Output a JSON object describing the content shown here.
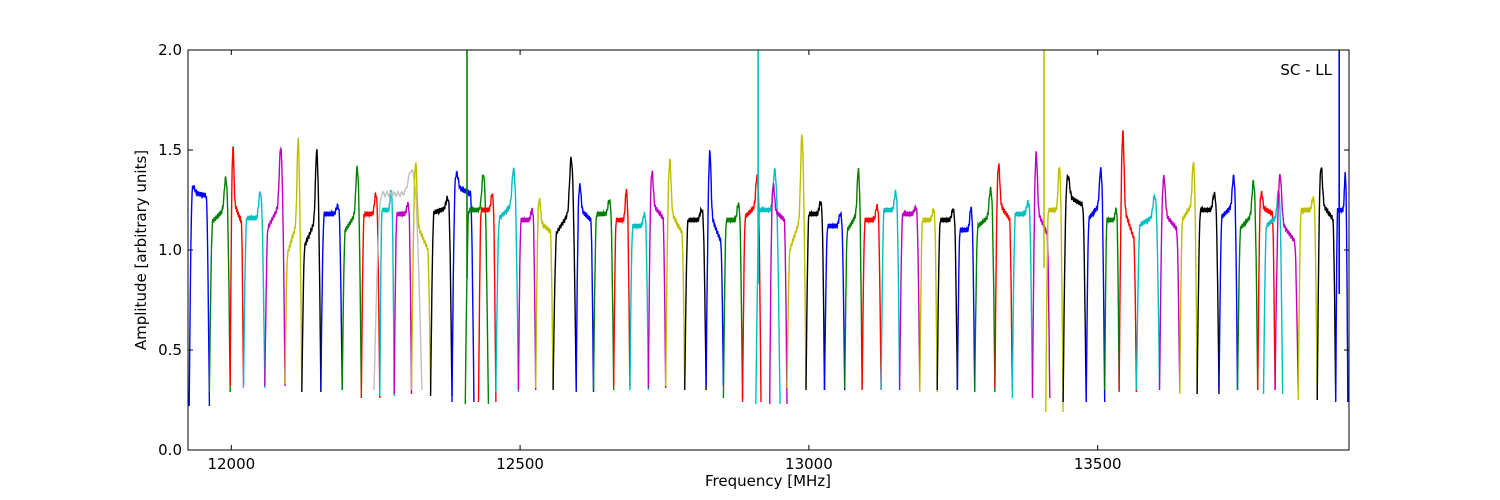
{
  "chart_data": {
    "type": "line",
    "title": "",
    "annotation": "SC - LL",
    "xlabel": "Frequency [MHz]",
    "ylabel": "Amplitude [arbitrary units]",
    "xlim": [
      11925,
      13935
    ],
    "ylim": [
      0.0,
      2.0
    ],
    "xticks": [
      12000,
      12500,
      13000,
      13500
    ],
    "xtick_labels": [
      "12000",
      "12500",
      "13000",
      "13500"
    ],
    "yticks": [
      0.0,
      0.5,
      1.0,
      1.5,
      2.0
    ],
    "ytick_labels": [
      "0.0",
      "0.5",
      "1.0",
      "1.5",
      "2.0"
    ],
    "grid": false,
    "colors": [
      "#0000ff",
      "#008000",
      "#ff0000",
      "#00bfbf",
      "#bf00bf",
      "#bfbf00",
      "#000000",
      "#c0c0c0"
    ],
    "passband": {
      "units": "MHz",
      "series": [
        {
          "color": "#0000ff",
          "start": 11927,
          "end": 11962,
          "low": 0.22,
          "level": 1.28,
          "peak": 1.31,
          "slope": -1
        },
        {
          "color": "#008000",
          "start": 11962,
          "end": 11998,
          "low": 0.29,
          "level": 1.18,
          "peak": 1.33,
          "slope": 1
        },
        {
          "color": "#ff0000",
          "start": 11998,
          "end": 12021,
          "low": 0.32,
          "level": 1.2,
          "peak": 1.46,
          "slope": -1
        },
        {
          "color": "#00bfbf",
          "start": 12021,
          "end": 12058,
          "low": 0.31,
          "level": 1.16,
          "peak": 1.29,
          "slope": 0
        },
        {
          "color": "#bf00bf",
          "start": 12058,
          "end": 12093,
          "low": 0.32,
          "level": 1.18,
          "peak": 1.46,
          "slope": 1
        },
        {
          "color": "#bfbf00",
          "start": 12093,
          "end": 12122,
          "low": 0.33,
          "level": 1.08,
          "peak": 1.48,
          "slope": 1
        },
        {
          "color": "#000000",
          "start": 12122,
          "end": 12155,
          "low": 0.29,
          "level": 1.1,
          "peak": 1.43,
          "slope": 1
        },
        {
          "color": "#0000ff",
          "start": 12155,
          "end": 12192,
          "low": 0.3,
          "level": 1.18,
          "peak": 1.22,
          "slope": 0
        },
        {
          "color": "#008000",
          "start": 12192,
          "end": 12225,
          "low": 0.3,
          "level": 1.15,
          "peak": 1.37,
          "slope": 1
        },
        {
          "color": "#ff0000",
          "start": 12225,
          "end": 12257,
          "low": 0.26,
          "level": 1.18,
          "peak": 1.28,
          "slope": 0
        },
        {
          "color": "#00bfbf",
          "start": 12257,
          "end": 12282,
          "low": 0.27,
          "level": 1.2,
          "peak": 1.3,
          "slope": 0
        },
        {
          "color": "#c0c0c0",
          "start": 12247,
          "end": 12330,
          "low": 0.3,
          "level": 1.28,
          "peak": 1.4,
          "slope": 0
        },
        {
          "color": "#bf00bf",
          "start": 12282,
          "end": 12312,
          "low": 0.28,
          "level": 1.18,
          "peak": 1.23,
          "slope": 0
        },
        {
          "color": "#bfbf00",
          "start": 12312,
          "end": 12345,
          "low": 0.3,
          "level": 1.08,
          "peak": 1.38,
          "slope": -1
        },
        {
          "color": "#000000",
          "start": 12345,
          "end": 12382,
          "low": 0.27,
          "level": 1.2,
          "peak": 1.25,
          "slope": 1
        },
        {
          "color": "#0000ff",
          "start": 12382,
          "end": 12420,
          "low": 0.24,
          "level": 1.3,
          "peak": 1.37,
          "slope": -1
        },
        {
          "color": "#008000",
          "start": 12405,
          "end": 12445,
          "low": 0.23,
          "level": 1.2,
          "peak": 1.38,
          "slope": 0
        },
        {
          "color": "#ff0000",
          "start": 12428,
          "end": 12458,
          "low": 0.24,
          "level": 1.2,
          "peak": 1.28,
          "slope": 0
        },
        {
          "color": "#00bfbf",
          "start": 12458,
          "end": 12497,
          "low": 0.29,
          "level": 1.2,
          "peak": 1.37,
          "slope": 1
        },
        {
          "color": "#bf00bf",
          "start": 12497,
          "end": 12527,
          "low": 0.3,
          "level": 1.15,
          "peak": 1.2,
          "slope": 0
        },
        {
          "color": "#bfbf00",
          "start": 12527,
          "end": 12557,
          "low": 0.31,
          "level": 1.12,
          "peak": 1.23,
          "slope": -1
        },
        {
          "color": "#000000",
          "start": 12557,
          "end": 12597,
          "low": 0.3,
          "level": 1.15,
          "peak": 1.41,
          "slope": 1
        },
        {
          "color": "#0000ff",
          "start": 12597,
          "end": 12627,
          "low": 0.29,
          "level": 1.18,
          "peak": 1.3,
          "slope": -1
        },
        {
          "color": "#008000",
          "start": 12627,
          "end": 12662,
          "low": 0.3,
          "level": 1.18,
          "peak": 1.25,
          "slope": 0
        },
        {
          "color": "#ff0000",
          "start": 12662,
          "end": 12690,
          "low": 0.32,
          "level": 1.15,
          "peak": 1.3,
          "slope": 0
        },
        {
          "color": "#00bfbf",
          "start": 12690,
          "end": 12722,
          "low": 0.3,
          "level": 1.12,
          "peak": 1.18,
          "slope": 0
        },
        {
          "color": "#bf00bf",
          "start": 12722,
          "end": 12752,
          "low": 0.31,
          "level": 1.2,
          "peak": 1.36,
          "slope": -1
        },
        {
          "color": "#bfbf00",
          "start": 12752,
          "end": 12785,
          "low": 0.32,
          "level": 1.15,
          "peak": 1.4,
          "slope": -1
        },
        {
          "color": "#000000",
          "start": 12785,
          "end": 12822,
          "low": 0.3,
          "level": 1.15,
          "peak": 1.2,
          "slope": 0
        },
        {
          "color": "#0000ff",
          "start": 12822,
          "end": 12852,
          "low": 0.32,
          "level": 1.12,
          "peak": 1.43,
          "slope": -1
        },
        {
          "color": "#008000",
          "start": 12852,
          "end": 12885,
          "low": 0.26,
          "level": 1.15,
          "peak": 1.23,
          "slope": 0
        },
        {
          "color": "#ff0000",
          "start": 12885,
          "end": 12917,
          "low": 0.24,
          "level": 1.2,
          "peak": 1.34,
          "slope": 1
        },
        {
          "color": "#00bfbf",
          "start": 12908,
          "end": 12950,
          "low": 0.23,
          "level": 1.2,
          "peak": 1.4,
          "slope": 0
        },
        {
          "color": "#bf00bf",
          "start": 12932,
          "end": 12962,
          "low": 0.23,
          "level": 1.18,
          "peak": 1.3,
          "slope": -1
        },
        {
          "color": "#bfbf00",
          "start": 12962,
          "end": 12995,
          "low": 0.31,
          "level": 1.1,
          "peak": 1.5,
          "slope": 1
        },
        {
          "color": "#000000",
          "start": 12995,
          "end": 13027,
          "low": 0.3,
          "level": 1.18,
          "peak": 1.24,
          "slope": 0
        },
        {
          "color": "#0000ff",
          "start": 13027,
          "end": 13062,
          "low": 0.3,
          "level": 1.12,
          "peak": 1.18,
          "slope": 0
        },
        {
          "color": "#008000",
          "start": 13062,
          "end": 13092,
          "low": 0.31,
          "level": 1.15,
          "peak": 1.36,
          "slope": 1
        },
        {
          "color": "#ff0000",
          "start": 13092,
          "end": 13125,
          "low": 0.3,
          "level": 1.15,
          "peak": 1.22,
          "slope": 0
        },
        {
          "color": "#00bfbf",
          "start": 13125,
          "end": 13157,
          "low": 0.3,
          "level": 1.2,
          "peak": 1.29,
          "slope": 0
        },
        {
          "color": "#bf00bf",
          "start": 13157,
          "end": 13192,
          "low": 0.3,
          "level": 1.18,
          "peak": 1.21,
          "slope": 0
        },
        {
          "color": "#bfbf00",
          "start": 13192,
          "end": 13222,
          "low": 0.29,
          "level": 1.15,
          "peak": 1.2,
          "slope": 0
        },
        {
          "color": "#000000",
          "start": 13222,
          "end": 13257,
          "low": 0.3,
          "level": 1.15,
          "peak": 1.2,
          "slope": 0
        },
        {
          "color": "#0000ff",
          "start": 13257,
          "end": 13287,
          "low": 0.3,
          "level": 1.1,
          "peak": 1.21,
          "slope": 0
        },
        {
          "color": "#008000",
          "start": 13287,
          "end": 13322,
          "low": 0.29,
          "level": 1.15,
          "peak": 1.28,
          "slope": 1
        },
        {
          "color": "#ff0000",
          "start": 13322,
          "end": 13352,
          "low": 0.31,
          "level": 1.2,
          "peak": 1.39,
          "slope": -1
        },
        {
          "color": "#00bfbf",
          "start": 13352,
          "end": 13387,
          "low": 0.26,
          "level": 1.18,
          "peak": 1.24,
          "slope": 0
        },
        {
          "color": "#bf00bf",
          "start": 13387,
          "end": 13417,
          "low": 0.26,
          "level": 1.15,
          "peak": 1.43,
          "slope": -1
        },
        {
          "color": "#bfbf00",
          "start": 13410,
          "end": 13440,
          "low": 0.19,
          "level": 1.2,
          "peak": 1.42,
          "slope": 0
        },
        {
          "color": "#000000",
          "start": 13440,
          "end": 13480,
          "low": 0.24,
          "level": 1.25,
          "peak": 1.35,
          "slope": -1
        },
        {
          "color": "#0000ff",
          "start": 13480,
          "end": 13512,
          "low": 0.24,
          "level": 1.2,
          "peak": 1.37,
          "slope": 1
        },
        {
          "color": "#008000",
          "start": 13512,
          "end": 13537,
          "low": 0.3,
          "level": 1.15,
          "peak": 1.2,
          "slope": 0
        },
        {
          "color": "#ff0000",
          "start": 13537,
          "end": 13567,
          "low": 0.29,
          "level": 1.15,
          "peak": 1.52,
          "slope": -1
        },
        {
          "color": "#00bfbf",
          "start": 13567,
          "end": 13607,
          "low": 0.3,
          "level": 1.15,
          "peak": 1.25,
          "slope": 1
        },
        {
          "color": "#bf00bf",
          "start": 13607,
          "end": 13642,
          "low": 0.3,
          "level": 1.15,
          "peak": 1.33,
          "slope": -1
        },
        {
          "color": "#bfbf00",
          "start": 13642,
          "end": 13672,
          "low": 0.28,
          "level": 1.2,
          "peak": 1.4,
          "slope": 1
        },
        {
          "color": "#000000",
          "start": 13672,
          "end": 13710,
          "low": 0.28,
          "level": 1.2,
          "peak": 1.28,
          "slope": 0
        },
        {
          "color": "#0000ff",
          "start": 13710,
          "end": 13742,
          "low": 0.3,
          "level": 1.2,
          "peak": 1.34,
          "slope": 1
        },
        {
          "color": "#008000",
          "start": 13742,
          "end": 13777,
          "low": 0.3,
          "level": 1.15,
          "peak": 1.31,
          "slope": 1
        },
        {
          "color": "#ff0000",
          "start": 13777,
          "end": 13807,
          "low": 0.3,
          "level": 1.2,
          "peak": 1.27,
          "slope": -1
        },
        {
          "color": "#00bfbf",
          "start": 13787,
          "end": 13820,
          "low": 0.28,
          "level": 1.15,
          "peak": 1.27,
          "slope": 1
        },
        {
          "color": "#bf00bf",
          "start": 13807,
          "end": 13847,
          "low": 0.3,
          "level": 1.1,
          "peak": 1.33,
          "slope": -1
        },
        {
          "color": "#bfbf00",
          "start": 13847,
          "end": 13880,
          "low": 0.25,
          "level": 1.2,
          "peak": 1.26,
          "slope": 0
        },
        {
          "color": "#000000",
          "start": 13880,
          "end": 13912,
          "low": 0.25,
          "level": 1.2,
          "peak": 1.38,
          "slope": -1
        },
        {
          "color": "#0000ff",
          "start": 13912,
          "end": 13933,
          "low": 0.24,
          "level": 1.2,
          "peak": 1.38,
          "slope": 0
        }
      ],
      "spikes": [
        {
          "x": 12408,
          "peak": 2.0,
          "base": 0.86,
          "color": "#008000"
        },
        {
          "x": 12912,
          "peak": 2.0,
          "base": 0.83,
          "color": "#00bfbf"
        },
        {
          "x": 13407,
          "peak": 2.0,
          "base": 0.91,
          "color": "#bfbf00"
        },
        {
          "x": 13918,
          "peak": 2.0,
          "base": 0.78,
          "color": "#0000ff"
        }
      ]
    }
  }
}
